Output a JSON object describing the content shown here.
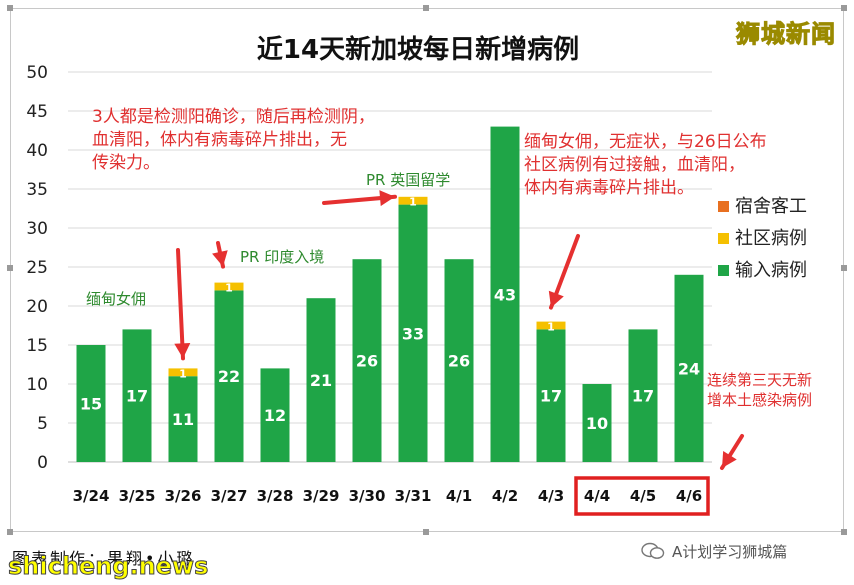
{
  "chart_data": {
    "type": "bar",
    "stacked": true,
    "title": "近14天新加坡每日新增病例",
    "categories": [
      "3/24",
      "3/25",
      "3/26",
      "3/27",
      "3/28",
      "3/29",
      "3/30",
      "3/31",
      "4/1",
      "4/2",
      "4/3",
      "4/4",
      "4/5",
      "4/6"
    ],
    "series": [
      {
        "name": "输入病例",
        "color": "#1fa547",
        "values": [
          15,
          17,
          11,
          22,
          12,
          21,
          26,
          33,
          26,
          43,
          17,
          10,
          17,
          24
        ]
      },
      {
        "name": "社区病例",
        "color": "#f5c000",
        "values": [
          0,
          0,
          1,
          1,
          0,
          0,
          0,
          1,
          0,
          0,
          1,
          0,
          0,
          0
        ]
      },
      {
        "name": "宿舍客工",
        "color": "#e87020",
        "values": [
          0,
          0,
          0,
          0,
          0,
          0,
          0,
          0,
          0,
          0,
          0,
          0,
          0,
          0
        ]
      }
    ],
    "ylim": [
      0,
      50
    ],
    "yticks": [
      0,
      5,
      10,
      15,
      20,
      25,
      30,
      35,
      40,
      45,
      50
    ],
    "grid": true,
    "legend_position": "right",
    "highlighted_categories": [
      "4/4",
      "4/5",
      "4/6"
    ]
  },
  "annotations": {
    "note_3_26": "3人都是检测阳确诊，随后再检测阴，\n血清阳，体内有病毒碎片排出，无\n传染力。",
    "note_3_24": "缅甸女佣",
    "note_3_27": "PR 印度入境",
    "note_3_31": "PR 英国留学",
    "note_4_3": "缅甸女佣，无症状，与26日公布\n社区病例有过接触，血清阳，\n体内有病毒碎片排出。",
    "note_recent": "连续第三天无新\n增本土感染病例"
  },
  "brand": "狮城新闻",
  "credit": "图表制作：果翔•小璐",
  "watermark_left": "shicheng.news",
  "watermark_right": "A计划学习狮城篇"
}
